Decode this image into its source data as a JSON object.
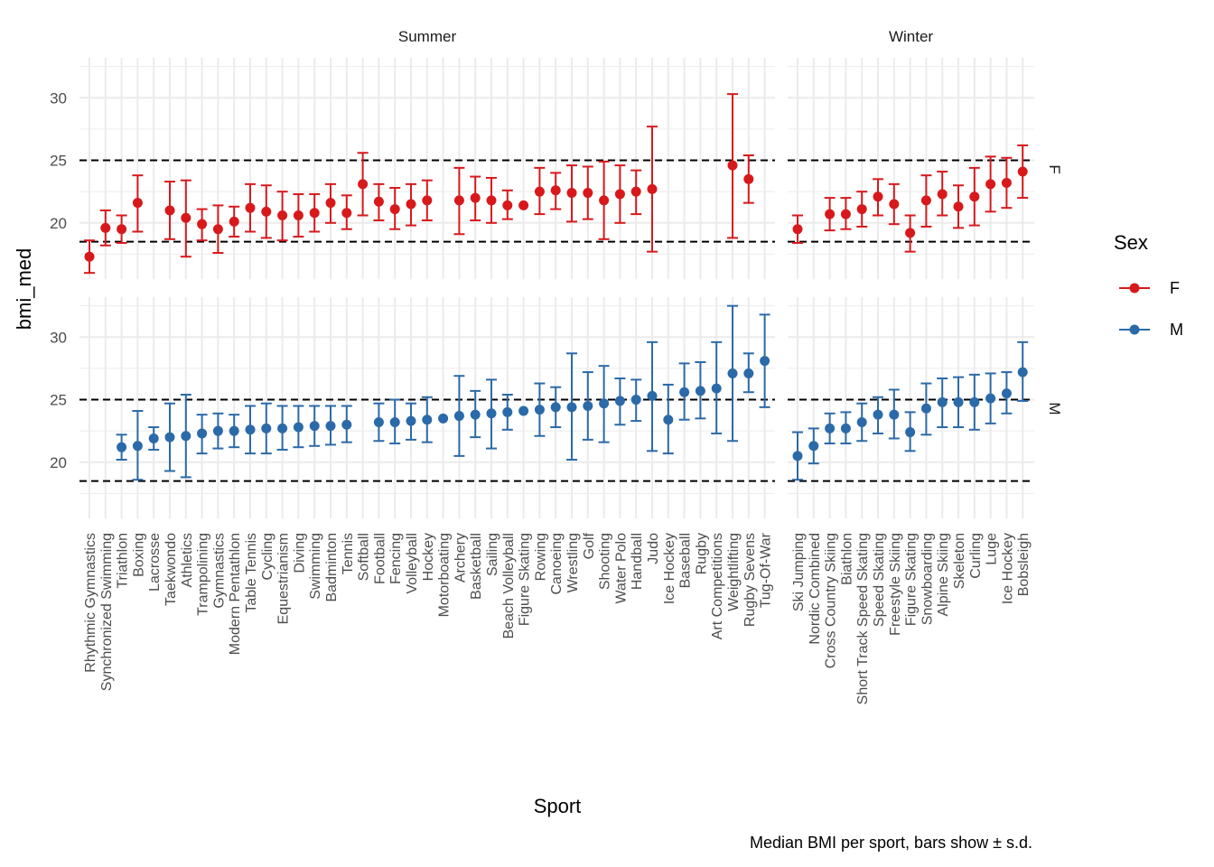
{
  "chart_data": {
    "type": "scatter",
    "subtype": "point-with-errorbars, faceted (rows = Sex, columns = Season)",
    "xlabel": "Sport",
    "ylabel": "bmi_med",
    "caption": "Median BMI per sport, bars show ± s.d.",
    "ylim": [
      15.5,
      33.2
    ],
    "yticks": [
      20,
      25,
      30
    ],
    "reference_lines": [
      18.5,
      25
    ],
    "grid": true,
    "legend": {
      "title": "Sex",
      "placement": "right",
      "entries": [
        "F",
        "M"
      ]
    },
    "colors": {
      "F": "#d7191c",
      "M": "#2b6aa8"
    },
    "facet_columns": [
      "Summer",
      "Winter"
    ],
    "facet_rows": [
      "F",
      "M"
    ],
    "categories": {
      "Summer": [
        "Rhythmic Gymnastics",
        "Synchronized Swimming",
        "Triathlon",
        "Boxing",
        "Lacrosse",
        "Taekwondo",
        "Athletics",
        "Trampolining",
        "Gymnastics",
        "Modern Pentathlon",
        "Table Tennis",
        "Cycling",
        "Equestrianism",
        "Diving",
        "Swimming",
        "Badminton",
        "Tennis",
        "Softball",
        "Football",
        "Fencing",
        "Volleyball",
        "Hockey",
        "Motorboating",
        "Archery",
        "Basketball",
        "Sailing",
        "Beach Volleyball",
        "Figure Skating",
        "Rowing",
        "Canoeing",
        "Wrestling",
        "Golf",
        "Shooting",
        "Water Polo",
        "Handball",
        "Judo",
        "Ice Hockey",
        "Baseball",
        "Rugby",
        "Art Competitions",
        "Weightlifting",
        "Rugby Sevens",
        "Tug-Of-War"
      ],
      "Winter": [
        "Ski Jumping",
        "Nordic Combined",
        "Cross Country Skiing",
        "Biathlon",
        "Short Track Speed Skating",
        "Speed Skating",
        "Freestyle Skiing",
        "Figure Skating",
        "Snowboarding",
        "Alpine Skiing",
        "Skeleton",
        "Curling",
        "Luge",
        "Ice Hockey",
        "Bobsleigh"
      ]
    },
    "panels": [
      {
        "season": "Summer",
        "sex": "F",
        "points": [
          {
            "x": "Rhythmic Gymnastics",
            "y": 17.3,
            "lo": 16.0,
            "hi": 18.6
          },
          {
            "x": "Synchronized Swimming",
            "y": 19.6,
            "lo": 18.2,
            "hi": 21.0
          },
          {
            "x": "Triathlon",
            "y": 19.5,
            "lo": 18.4,
            "hi": 20.6
          },
          {
            "x": "Boxing",
            "y": 21.6,
            "lo": 19.3,
            "hi": 23.8
          },
          {
            "x": "Taekwondo",
            "y": 21.0,
            "lo": 18.7,
            "hi": 23.3
          },
          {
            "x": "Athletics",
            "y": 20.4,
            "lo": 17.3,
            "hi": 23.4
          },
          {
            "x": "Trampolining",
            "y": 19.9,
            "lo": 18.6,
            "hi": 21.1
          },
          {
            "x": "Gymnastics",
            "y": 19.5,
            "lo": 17.6,
            "hi": 21.4
          },
          {
            "x": "Modern Pentathlon",
            "y": 20.1,
            "lo": 18.9,
            "hi": 21.3
          },
          {
            "x": "Table Tennis",
            "y": 21.2,
            "lo": 19.3,
            "hi": 23.1
          },
          {
            "x": "Cycling",
            "y": 20.9,
            "lo": 18.8,
            "hi": 23.0
          },
          {
            "x": "Equestrianism",
            "y": 20.6,
            "lo": 18.6,
            "hi": 22.5
          },
          {
            "x": "Diving",
            "y": 20.6,
            "lo": 18.9,
            "hi": 22.3
          },
          {
            "x": "Swimming",
            "y": 20.8,
            "lo": 19.3,
            "hi": 22.3
          },
          {
            "x": "Badminton",
            "y": 21.6,
            "lo": 20.0,
            "hi": 23.1
          },
          {
            "x": "Tennis",
            "y": 20.8,
            "lo": 19.5,
            "hi": 22.2
          },
          {
            "x": "Softball",
            "y": 23.1,
            "lo": 20.6,
            "hi": 25.6
          },
          {
            "x": "Football",
            "y": 21.7,
            "lo": 20.2,
            "hi": 23.1
          },
          {
            "x": "Fencing",
            "y": 21.1,
            "lo": 19.5,
            "hi": 22.8
          },
          {
            "x": "Volleyball",
            "y": 21.5,
            "lo": 19.8,
            "hi": 23.1
          },
          {
            "x": "Hockey",
            "y": 21.8,
            "lo": 20.2,
            "hi": 23.4
          },
          {
            "x": "Archery",
            "y": 21.8,
            "lo": 19.1,
            "hi": 24.4
          },
          {
            "x": "Basketball",
            "y": 22.0,
            "lo": 20.2,
            "hi": 23.7
          },
          {
            "x": "Sailing",
            "y": 21.8,
            "lo": 20.0,
            "hi": 23.6
          },
          {
            "x": "Beach Volleyball",
            "y": 21.4,
            "lo": 20.3,
            "hi": 22.6
          },
          {
            "x": "Figure Skating",
            "y": 21.4,
            "lo": 21.4,
            "hi": 21.4
          },
          {
            "x": "Rowing",
            "y": 22.5,
            "lo": 20.7,
            "hi": 24.4
          },
          {
            "x": "Canoeing",
            "y": 22.6,
            "lo": 21.1,
            "hi": 24.0
          },
          {
            "x": "Wrestling",
            "y": 22.4,
            "lo": 20.1,
            "hi": 24.6
          },
          {
            "x": "Golf",
            "y": 22.4,
            "lo": 20.3,
            "hi": 24.5
          },
          {
            "x": "Shooting",
            "y": 21.8,
            "lo": 18.7,
            "hi": 24.9
          },
          {
            "x": "Water Polo",
            "y": 22.3,
            "lo": 20.0,
            "hi": 24.6
          },
          {
            "x": "Handball",
            "y": 22.5,
            "lo": 20.7,
            "hi": 24.2
          },
          {
            "x": "Judo",
            "y": 22.7,
            "lo": 17.7,
            "hi": 27.7
          },
          {
            "x": "Weightlifting",
            "y": 24.6,
            "lo": 18.8,
            "hi": 30.3
          },
          {
            "x": "Rugby Sevens",
            "y": 23.5,
            "lo": 21.6,
            "hi": 25.4
          }
        ]
      },
      {
        "season": "Summer",
        "sex": "M",
        "points": [
          {
            "x": "Triathlon",
            "y": 21.2,
            "lo": 20.2,
            "hi": 22.2
          },
          {
            "x": "Boxing",
            "y": 21.3,
            "lo": 18.6,
            "hi": 24.1
          },
          {
            "x": "Lacrosse",
            "y": 21.9,
            "lo": 21.0,
            "hi": 22.8
          },
          {
            "x": "Taekwondo",
            "y": 22.0,
            "lo": 19.3,
            "hi": 24.7
          },
          {
            "x": "Athletics",
            "y": 22.1,
            "lo": 18.8,
            "hi": 25.4
          },
          {
            "x": "Trampolining",
            "y": 22.3,
            "lo": 20.7,
            "hi": 23.8
          },
          {
            "x": "Gymnastics",
            "y": 22.5,
            "lo": 21.1,
            "hi": 23.9
          },
          {
            "x": "Modern Pentathlon",
            "y": 22.5,
            "lo": 21.2,
            "hi": 23.8
          },
          {
            "x": "Table Tennis",
            "y": 22.6,
            "lo": 20.7,
            "hi": 24.5
          },
          {
            "x": "Cycling",
            "y": 22.7,
            "lo": 20.7,
            "hi": 24.7
          },
          {
            "x": "Equestrianism",
            "y": 22.7,
            "lo": 21.0,
            "hi": 24.5
          },
          {
            "x": "Diving",
            "y": 22.8,
            "lo": 21.2,
            "hi": 24.5
          },
          {
            "x": "Swimming",
            "y": 22.9,
            "lo": 21.3,
            "hi": 24.5
          },
          {
            "x": "Badminton",
            "y": 22.9,
            "lo": 21.4,
            "hi": 24.5
          },
          {
            "x": "Tennis",
            "y": 23.0,
            "lo": 21.6,
            "hi": 24.5
          },
          {
            "x": "Football",
            "y": 23.2,
            "lo": 21.7,
            "hi": 24.7
          },
          {
            "x": "Fencing",
            "y": 23.2,
            "lo": 21.5,
            "hi": 25.0
          },
          {
            "x": "Volleyball",
            "y": 23.3,
            "lo": 21.8,
            "hi": 24.7
          },
          {
            "x": "Hockey",
            "y": 23.4,
            "lo": 21.6,
            "hi": 25.2
          },
          {
            "x": "Motorboating",
            "y": 23.5,
            "lo": 23.5,
            "hi": 23.5
          },
          {
            "x": "Archery",
            "y": 23.7,
            "lo": 20.5,
            "hi": 26.9
          },
          {
            "x": "Basketball",
            "y": 23.8,
            "lo": 22.0,
            "hi": 25.7
          },
          {
            "x": "Sailing",
            "y": 23.9,
            "lo": 21.1,
            "hi": 26.6
          },
          {
            "x": "Beach Volleyball",
            "y": 24.0,
            "lo": 22.6,
            "hi": 25.4
          },
          {
            "x": "Figure Skating",
            "y": 24.1,
            "lo": 24.1,
            "hi": 24.1
          },
          {
            "x": "Rowing",
            "y": 24.2,
            "lo": 22.1,
            "hi": 26.3
          },
          {
            "x": "Canoeing",
            "y": 24.4,
            "lo": 22.8,
            "hi": 26.0
          },
          {
            "x": "Wrestling",
            "y": 24.4,
            "lo": 20.2,
            "hi": 28.7
          },
          {
            "x": "Golf",
            "y": 24.5,
            "lo": 21.8,
            "hi": 27.2
          },
          {
            "x": "Shooting",
            "y": 24.7,
            "lo": 21.6,
            "hi": 27.7
          },
          {
            "x": "Water Polo",
            "y": 24.9,
            "lo": 23.0,
            "hi": 26.7
          },
          {
            "x": "Handball",
            "y": 25.0,
            "lo": 23.3,
            "hi": 26.6
          },
          {
            "x": "Judo",
            "y": 25.3,
            "lo": 20.9,
            "hi": 29.6
          },
          {
            "x": "Ice Hockey",
            "y": 23.4,
            "lo": 20.7,
            "hi": 26.2
          },
          {
            "x": "Baseball",
            "y": 25.6,
            "lo": 23.4,
            "hi": 27.9
          },
          {
            "x": "Rugby",
            "y": 25.7,
            "lo": 23.5,
            "hi": 28.0
          },
          {
            "x": "Art Competitions",
            "y": 25.9,
            "lo": 22.3,
            "hi": 29.6
          },
          {
            "x": "Weightlifting",
            "y": 27.1,
            "lo": 21.7,
            "hi": 32.5
          },
          {
            "x": "Rugby Sevens",
            "y": 27.1,
            "lo": 25.6,
            "hi": 28.7
          },
          {
            "x": "Tug-Of-War",
            "y": 28.1,
            "lo": 24.4,
            "hi": 31.8
          }
        ]
      },
      {
        "season": "Winter",
        "sex": "F",
        "points": [
          {
            "x": "Ski Jumping",
            "y": 19.5,
            "lo": 18.4,
            "hi": 20.6
          },
          {
            "x": "Cross Country Skiing",
            "y": 20.7,
            "lo": 19.4,
            "hi": 22.0
          },
          {
            "x": "Biathlon",
            "y": 20.7,
            "lo": 19.5,
            "hi": 22.0
          },
          {
            "x": "Short Track Speed Skating",
            "y": 21.1,
            "lo": 19.7,
            "hi": 22.5
          },
          {
            "x": "Speed Skating",
            "y": 22.1,
            "lo": 20.6,
            "hi": 23.5
          },
          {
            "x": "Freestyle Skiing",
            "y": 21.5,
            "lo": 19.9,
            "hi": 23.1
          },
          {
            "x": "Figure Skating",
            "y": 19.2,
            "lo": 17.7,
            "hi": 20.6
          },
          {
            "x": "Snowboarding",
            "y": 21.8,
            "lo": 19.7,
            "hi": 23.8
          },
          {
            "x": "Alpine Skiing",
            "y": 22.3,
            "lo": 20.6,
            "hi": 24.1
          },
          {
            "x": "Skeleton",
            "y": 21.3,
            "lo": 19.6,
            "hi": 23.0
          },
          {
            "x": "Curling",
            "y": 22.1,
            "lo": 19.8,
            "hi": 24.4
          },
          {
            "x": "Luge",
            "y": 23.1,
            "lo": 20.9,
            "hi": 25.3
          },
          {
            "x": "Ice Hockey",
            "y": 23.2,
            "lo": 21.2,
            "hi": 25.2
          },
          {
            "x": "Bobsleigh",
            "y": 24.1,
            "lo": 22.0,
            "hi": 26.2
          }
        ]
      },
      {
        "season": "Winter",
        "sex": "M",
        "points": [
          {
            "x": "Ski Jumping",
            "y": 20.5,
            "lo": 18.6,
            "hi": 22.4
          },
          {
            "x": "Nordic Combined",
            "y": 21.3,
            "lo": 19.9,
            "hi": 22.7
          },
          {
            "x": "Cross Country Skiing",
            "y": 22.7,
            "lo": 21.5,
            "hi": 23.9
          },
          {
            "x": "Biathlon",
            "y": 22.7,
            "lo": 21.5,
            "hi": 24.0
          },
          {
            "x": "Short Track Speed Skating",
            "y": 23.2,
            "lo": 21.7,
            "hi": 24.7
          },
          {
            "x": "Speed Skating",
            "y": 23.8,
            "lo": 22.3,
            "hi": 25.2
          },
          {
            "x": "Freestyle Skiing",
            "y": 23.8,
            "lo": 21.9,
            "hi": 25.8
          },
          {
            "x": "Figure Skating",
            "y": 22.4,
            "lo": 20.9,
            "hi": 24.0
          },
          {
            "x": "Snowboarding",
            "y": 24.3,
            "lo": 22.2,
            "hi": 26.3
          },
          {
            "x": "Alpine Skiing",
            "y": 24.8,
            "lo": 22.8,
            "hi": 26.7
          },
          {
            "x": "Skeleton",
            "y": 24.8,
            "lo": 22.8,
            "hi": 26.8
          },
          {
            "x": "Curling",
            "y": 24.8,
            "lo": 22.6,
            "hi": 27.0
          },
          {
            "x": "Luge",
            "y": 25.1,
            "lo": 23.1,
            "hi": 27.1
          },
          {
            "x": "Ice Hockey",
            "y": 25.5,
            "lo": 23.9,
            "hi": 27.2
          },
          {
            "x": "Bobsleigh",
            "y": 27.2,
            "lo": 24.9,
            "hi": 29.6
          }
        ]
      }
    ]
  }
}
